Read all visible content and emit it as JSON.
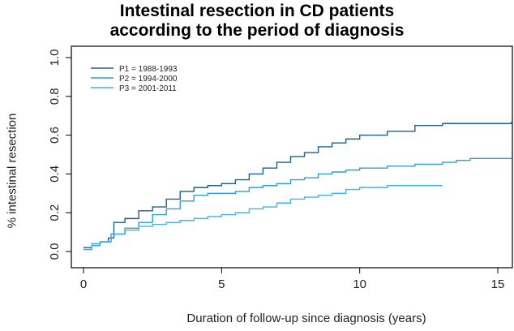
{
  "chart_data": {
    "type": "line",
    "title_line1": "Intestinal resection in CD patients",
    "title_line2": "according to the period of diagnosis",
    "xlabel": "Duration of follow-up since diagnosis (years)",
    "ylabel": "% intestinal resection",
    "xlim": [
      0,
      15.5
    ],
    "ylim": [
      0,
      1.0
    ],
    "xticks": [
      "0",
      "5",
      "10",
      "15"
    ],
    "xtick_values": [
      0,
      5,
      10,
      15
    ],
    "yticks": [
      "0.0",
      "0.2",
      "0.4",
      "0.6",
      "0.8",
      "1.0"
    ],
    "ytick_values": [
      0,
      0.2,
      0.4,
      0.6,
      0.8,
      1.0
    ],
    "legend_position": "top-left",
    "series": [
      {
        "name": "P1 = 1988-1993",
        "color": "#1f5f8b",
        "points": [
          [
            0,
            0.02
          ],
          [
            0.3,
            0.04
          ],
          [
            0.6,
            0.05
          ],
          [
            0.9,
            0.07
          ],
          [
            1.1,
            0.15
          ],
          [
            1.5,
            0.17
          ],
          [
            2,
            0.21
          ],
          [
            2.5,
            0.23
          ],
          [
            3,
            0.27
          ],
          [
            3.5,
            0.31
          ],
          [
            4,
            0.33
          ],
          [
            4.5,
            0.34
          ],
          [
            5,
            0.35
          ],
          [
            5.5,
            0.37
          ],
          [
            6,
            0.4
          ],
          [
            6.5,
            0.43
          ],
          [
            7,
            0.46
          ],
          [
            7.5,
            0.49
          ],
          [
            8,
            0.51
          ],
          [
            8.5,
            0.54
          ],
          [
            9,
            0.56
          ],
          [
            9.5,
            0.58
          ],
          [
            10,
            0.6
          ],
          [
            11,
            0.62
          ],
          [
            12,
            0.65
          ],
          [
            13,
            0.66
          ],
          [
            14,
            0.66
          ],
          [
            15,
            0.66
          ],
          [
            15.5,
            0.67
          ]
        ]
      },
      {
        "name": "P2 = 1994-2000",
        "color": "#2c9fd6",
        "points": [
          [
            0,
            0.01
          ],
          [
            0.3,
            0.03
          ],
          [
            0.6,
            0.05
          ],
          [
            1,
            0.09
          ],
          [
            1.5,
            0.12
          ],
          [
            2,
            0.15
          ],
          [
            2.5,
            0.19
          ],
          [
            3,
            0.22
          ],
          [
            3.5,
            0.26
          ],
          [
            4,
            0.29
          ],
          [
            4.5,
            0.3
          ],
          [
            5,
            0.3
          ],
          [
            5.5,
            0.31
          ],
          [
            6,
            0.33
          ],
          [
            6.5,
            0.34
          ],
          [
            7,
            0.35
          ],
          [
            7.5,
            0.37
          ],
          [
            8,
            0.38
          ],
          [
            8.5,
            0.4
          ],
          [
            9,
            0.41
          ],
          [
            9.5,
            0.42
          ],
          [
            10,
            0.43
          ],
          [
            11,
            0.44
          ],
          [
            12,
            0.45
          ],
          [
            13,
            0.46
          ],
          [
            13.5,
            0.47
          ],
          [
            14,
            0.48
          ],
          [
            15.5,
            0.48
          ]
        ]
      },
      {
        "name": "P3 = 2001-2011",
        "color": "#3fb4e8",
        "points": [
          [
            0,
            0.01
          ],
          [
            0.3,
            0.04
          ],
          [
            0.6,
            0.05
          ],
          [
            1,
            0.09
          ],
          [
            1.5,
            0.11
          ],
          [
            2,
            0.13
          ],
          [
            2.5,
            0.14
          ],
          [
            3,
            0.15
          ],
          [
            3.5,
            0.16
          ],
          [
            4,
            0.17
          ],
          [
            4.5,
            0.18
          ],
          [
            5,
            0.19
          ],
          [
            5.5,
            0.2
          ],
          [
            6,
            0.22
          ],
          [
            6.5,
            0.23
          ],
          [
            7,
            0.25
          ],
          [
            7.5,
            0.27
          ],
          [
            8,
            0.28
          ],
          [
            8.5,
            0.29
          ],
          [
            9,
            0.3
          ],
          [
            9.5,
            0.32
          ],
          [
            10,
            0.33
          ],
          [
            11,
            0.34
          ],
          [
            12,
            0.34
          ],
          [
            13,
            0.34
          ]
        ]
      }
    ]
  }
}
